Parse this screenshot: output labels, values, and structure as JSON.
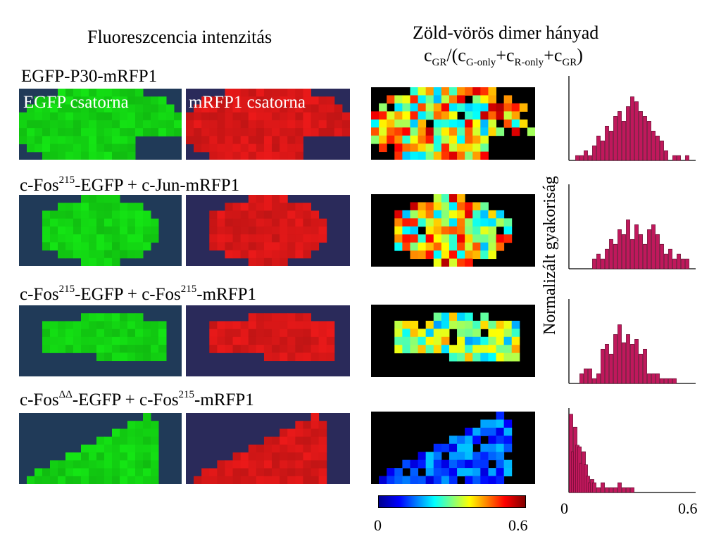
{
  "headings": {
    "left": "Fluoreszcencia intenzitás",
    "right": "Zöld-vörös dimer hányad"
  },
  "formula": {
    "c": "c",
    "gr_sub": "GR",
    "open": "/(c",
    "g_sub": "G-only",
    "plus1": "+c",
    "r_sub": "R-only",
    "plus2": "+c",
    "gr_sub2": "GR",
    "close": ")"
  },
  "rows": [
    {
      "parts": [
        {
          "t": "EGFP-P30-mRFP1"
        }
      ]
    },
    {
      "parts": [
        {
          "t": "c-Fos"
        },
        {
          "s": "215"
        },
        {
          "t": "-EGFP + c-Jun-mRFP1"
        }
      ]
    },
    {
      "parts": [
        {
          "t": "c-Fos"
        },
        {
          "s": "215"
        },
        {
          "t": "-EGFP + c-Fos"
        },
        {
          "s": "215"
        },
        {
          "t": "-mRFP1"
        }
      ]
    },
    {
      "parts": [
        {
          "t": "c-Fos"
        },
        {
          "s": "ΔΔ"
        },
        {
          "t": "-EGFP + c-Fos"
        },
        {
          "s": "215"
        },
        {
          "t": "-mRFP1"
        }
      ]
    }
  ],
  "channels": {
    "green": "EGFP csatorna",
    "red": "mRFP1 csatorna"
  },
  "colorbar": {
    "min": "0",
    "max": "0.6",
    "colors": [
      "#00008f",
      "#0000ff",
      "#00ffff",
      "#ffff00",
      "#ff0000",
      "#800000"
    ]
  },
  "histogram_axis": {
    "ylabel": "Normalizált gyakoriság",
    "xmin": "0",
    "xmax": "0.6",
    "bar_color": "#c0185c"
  },
  "chart_data": [
    {
      "type": "bar",
      "title": "",
      "xlim": [
        0,
        0.6
      ],
      "x": [
        0.04,
        0.06,
        0.08,
        0.1,
        0.12,
        0.14,
        0.16,
        0.18,
        0.2,
        0.22,
        0.24,
        0.26,
        0.28,
        0.3,
        0.32,
        0.34,
        0.36,
        0.38,
        0.4,
        0.42,
        0.44,
        0.46,
        0.5,
        0.52,
        0.56
      ],
      "values": [
        0.06,
        0.06,
        0.12,
        0.06,
        0.18,
        0.3,
        0.24,
        0.42,
        0.36,
        0.54,
        0.6,
        0.48,
        0.66,
        0.78,
        0.72,
        0.6,
        0.54,
        0.48,
        0.36,
        0.3,
        0.24,
        0.12,
        0.06,
        0.06,
        0.06
      ]
    },
    {
      "type": "bar",
      "title": "",
      "xlim": [
        0,
        0.6
      ],
      "x": [
        0.12,
        0.14,
        0.16,
        0.18,
        0.2,
        0.22,
        0.24,
        0.26,
        0.28,
        0.3,
        0.32,
        0.34,
        0.36,
        0.38,
        0.4,
        0.42,
        0.44,
        0.46,
        0.48,
        0.5,
        0.52,
        0.54,
        0.56
      ],
      "values": [
        0.12,
        0.18,
        0.12,
        0.24,
        0.36,
        0.3,
        0.48,
        0.42,
        0.6,
        0.36,
        0.54,
        0.42,
        0.3,
        0.48,
        0.54,
        0.42,
        0.3,
        0.18,
        0.24,
        0.12,
        0.18,
        0.12,
        0.12
      ]
    },
    {
      "type": "bar",
      "title": "",
      "xlim": [
        0,
        0.6
      ],
      "x": [
        0.06,
        0.08,
        0.1,
        0.12,
        0.14,
        0.16,
        0.18,
        0.2,
        0.22,
        0.24,
        0.26,
        0.28,
        0.3,
        0.32,
        0.34,
        0.36,
        0.38,
        0.4,
        0.42,
        0.44,
        0.46,
        0.48,
        0.5
      ],
      "values": [
        0.12,
        0.18,
        0.18,
        0.06,
        0.12,
        0.42,
        0.48,
        0.36,
        0.6,
        0.72,
        0.5,
        0.6,
        0.48,
        0.54,
        0.36,
        0.42,
        0.12,
        0.12,
        0.12,
        0.06,
        0.06,
        0.06,
        0.06
      ]
    },
    {
      "type": "bar",
      "title": "",
      "xlim": [
        0,
        0.6
      ],
      "x": [
        0.01,
        0.02,
        0.03,
        0.04,
        0.05,
        0.06,
        0.07,
        0.08,
        0.09,
        0.1,
        0.11,
        0.12,
        0.14,
        0.16,
        0.18,
        0.2,
        0.22,
        0.24,
        0.26,
        0.28,
        0.3
      ],
      "values": [
        0.96,
        0.5,
        0.8,
        0.58,
        0.56,
        0.36,
        0.5,
        0.34,
        0.2,
        0.12,
        0.16,
        0.12,
        0.06,
        0.12,
        0.06,
        0.06,
        0.06,
        0.12,
        0.06,
        0.06,
        0.06
      ]
    }
  ]
}
